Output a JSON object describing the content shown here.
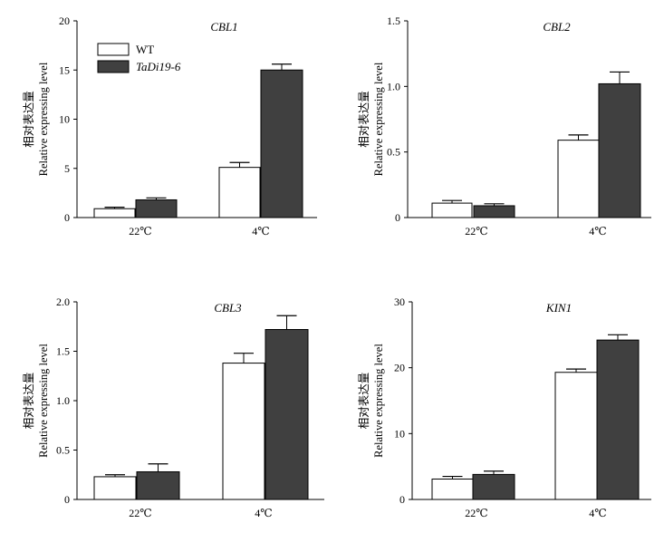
{
  "chart_data": [
    {
      "type": "bar",
      "title": "CBL1",
      "ylabel_cn": "相对表达量",
      "ylabel_en": "Relative expressing level",
      "categories": [
        "22℃",
        "4℃"
      ],
      "ylim": [
        0,
        20
      ],
      "yticks": [
        "0",
        "5",
        "10",
        "15",
        "20"
      ],
      "series": [
        {
          "name": "WT",
          "values": [
            0.9,
            5.1
          ],
          "errors": [
            0.15,
            0.5
          ]
        },
        {
          "name": "TaDi19-6",
          "values": [
            1.8,
            15.0
          ],
          "errors": [
            0.2,
            0.6
          ]
        }
      ],
      "legend": "top-left"
    },
    {
      "type": "bar",
      "title": "CBL2",
      "ylabel_cn": "相对表达量",
      "ylabel_en": "Relative expressing level",
      "categories": [
        "22℃",
        "4℃"
      ],
      "ylim": [
        0,
        1.5
      ],
      "yticks": [
        "0",
        "0.5",
        "1.0",
        "1.5"
      ],
      "series": [
        {
          "name": "WT",
          "values": [
            0.11,
            0.59
          ],
          "errors": [
            0.02,
            0.04
          ]
        },
        {
          "name": "TaDi19-6",
          "values": [
            0.09,
            1.02
          ],
          "errors": [
            0.015,
            0.09
          ]
        }
      ]
    },
    {
      "type": "bar",
      "title": "CBL3",
      "ylabel_cn": "相对表达量",
      "ylabel_en": "Relative expressing level",
      "categories": [
        "22℃",
        "4℃"
      ],
      "ylim": [
        0,
        2.0
      ],
      "yticks": [
        "0",
        "0.5",
        "1.0",
        "1.5",
        "2.0"
      ],
      "series": [
        {
          "name": "WT",
          "values": [
            0.23,
            1.38
          ],
          "errors": [
            0.02,
            0.1
          ]
        },
        {
          "name": "TaDi19-6",
          "values": [
            0.28,
            1.72
          ],
          "errors": [
            0.08,
            0.14
          ]
        }
      ]
    },
    {
      "type": "bar",
      "title": "KIN1",
      "ylabel_cn": "相对表达量",
      "ylabel_en": "Relative expressing level",
      "categories": [
        "22℃",
        "4℃"
      ],
      "ylim": [
        0,
        30
      ],
      "yticks": [
        "0",
        "10",
        "20",
        "30"
      ],
      "series": [
        {
          "name": "WT",
          "values": [
            3.1,
            19.3
          ],
          "errors": [
            0.4,
            0.5
          ]
        },
        {
          "name": "TaDi19-6",
          "values": [
            3.8,
            24.2
          ],
          "errors": [
            0.5,
            0.8
          ]
        }
      ]
    }
  ],
  "colors": {
    "WT": "#ffffff",
    "TaDi19-6": "#404040",
    "stroke": "#000000"
  }
}
